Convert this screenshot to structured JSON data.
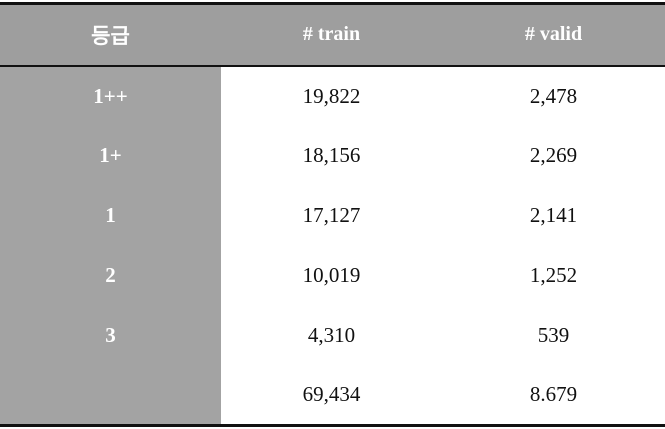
{
  "table": {
    "headers": [
      "등급",
      "# train",
      "# valid"
    ],
    "rows": [
      {
        "grade": "1++",
        "train": "19,822",
        "valid": "2,478"
      },
      {
        "grade": "1+",
        "train": "18,156",
        "valid": "2,269"
      },
      {
        "grade": "1",
        "train": "17,127",
        "valid": "2,141"
      },
      {
        "grade": "2",
        "train": "10,019",
        "valid": "1,252"
      },
      {
        "grade": "3",
        "train": "4,310",
        "valid": "539"
      },
      {
        "grade": "",
        "train": "69,434",
        "valid": "8.679"
      }
    ]
  },
  "colors": {
    "header_bg": "#9e9e9e",
    "grade_column_bg": "#a3a3a3",
    "border": "#111111"
  }
}
